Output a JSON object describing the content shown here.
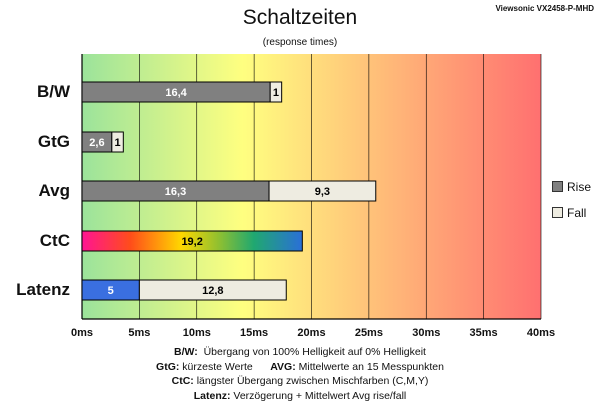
{
  "header": {
    "title": "Schaltzeiten",
    "subtitle": "(response times)",
    "model": "Viewsonic VX2458-P-MHD"
  },
  "legend": {
    "rise_label": "Rise",
    "fall_label": "Fall"
  },
  "notes": {
    "bw_key": "B/W:",
    "bw_text": "Übergang von 100% Helligkeit auf 0% Helligkeit",
    "gtg_key": "GtG:",
    "gtg_text": "kürzeste Werte",
    "avg_key": "AVG:",
    "avg_text": "Mittelwerte an 15 Messpunkten",
    "ctc_key": "CtC:",
    "ctc_text": "längster Übergang zwischen Mischfarben (C,M,Y)",
    "lat_key": "Latenz:",
    "lat_text": "Verzögerung + Mittelwert Avg rise/fall"
  },
  "chart_data": {
    "type": "bar",
    "orientation": "horizontal",
    "stacked": true,
    "title": "Schaltzeiten",
    "subtitle": "(response times)",
    "categories": [
      "B/W",
      "GtG",
      "Avg",
      "CtC",
      "Latenz"
    ],
    "series": [
      {
        "name": "Rise",
        "values": [
          16.4,
          2.6,
          16.3,
          null,
          null
        ],
        "labels": [
          "16,4",
          "2,6",
          "16,3",
          null,
          null
        ],
        "color": "#808080"
      },
      {
        "name": "Fall",
        "values": [
          1,
          1,
          9.3,
          null,
          null
        ],
        "labels": [
          "1",
          "1",
          "9,3",
          null,
          null
        ],
        "color": "#eeece1"
      }
    ],
    "ctc": {
      "value": 19.2,
      "label": "19,2"
    },
    "latency": {
      "delay": 5,
      "delay_label": "5",
      "avg": 12.8,
      "avg_label": "12,8",
      "delay_color": "#3a6fe0",
      "avg_color": "#eeece1"
    },
    "xlim": [
      0,
      40
    ],
    "xticks": [
      0,
      5,
      10,
      15,
      20,
      25,
      30,
      35,
      40
    ],
    "xtick_labels": [
      "0ms",
      "5ms",
      "10ms",
      "15ms",
      "20ms",
      "25ms",
      "30ms",
      "35ms",
      "40ms"
    ],
    "xlabel": "",
    "ylabel": "",
    "grid": true,
    "legend_position": "right",
    "background_gradient": [
      "#9be39b",
      "#ffff80",
      "#ff7070"
    ]
  }
}
